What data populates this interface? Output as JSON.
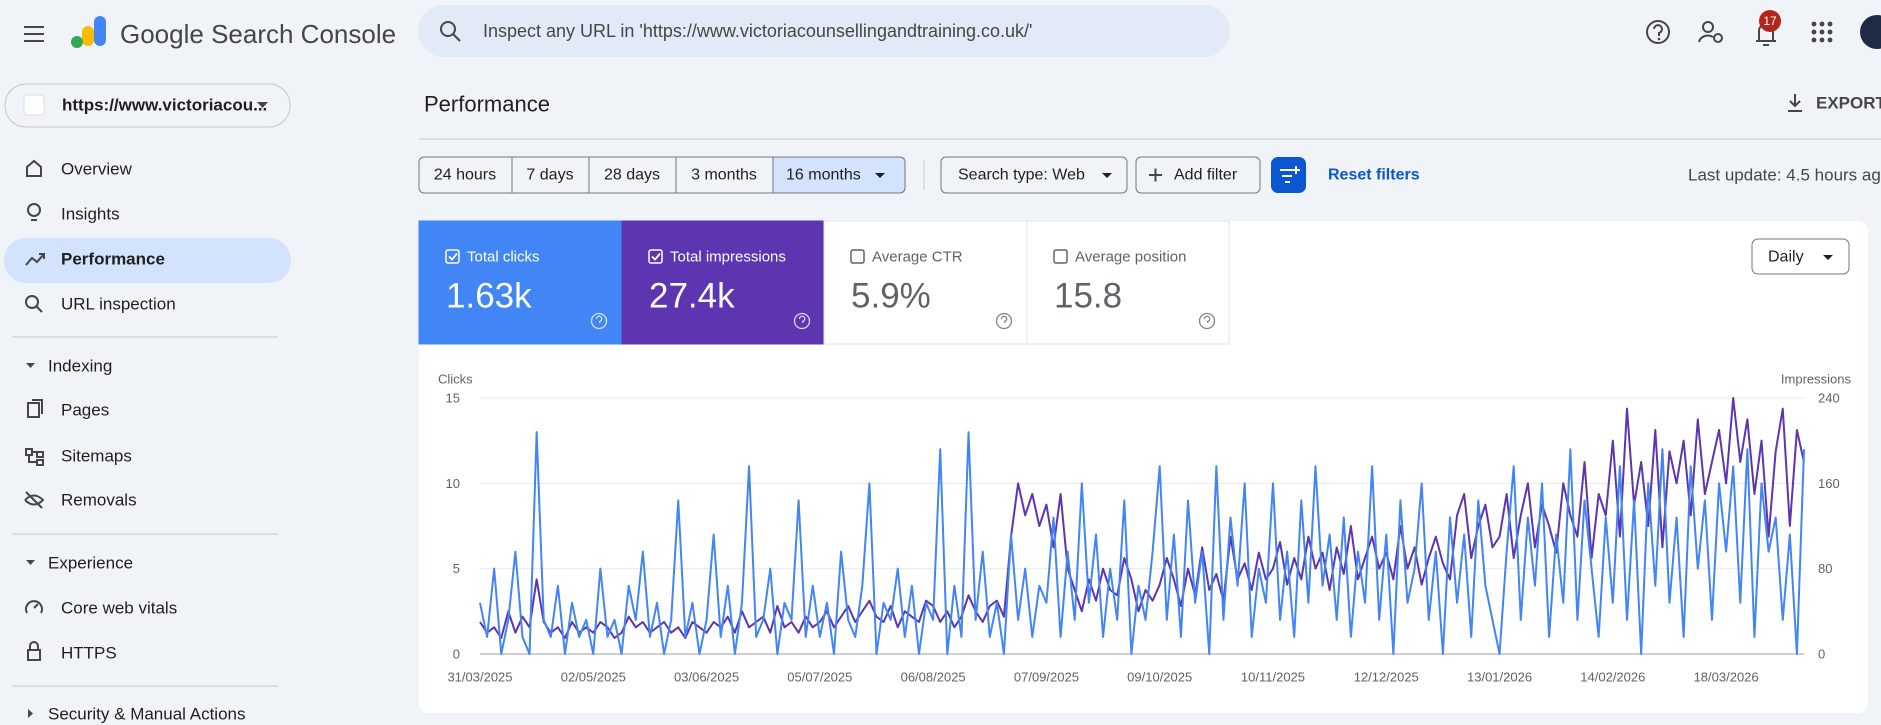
{
  "header": {
    "product": "Google Search Console",
    "search_placeholder": "Inspect any URL in 'https://www.victoriacounsellingandtraining.co.uk/'",
    "notifications": "17"
  },
  "property": "https://www.victoriacou...",
  "nav": [
    "Overview",
    "Insights",
    "Performance",
    "URL inspection"
  ],
  "indexing": {
    "title": "Indexing",
    "items": [
      "Pages",
      "Sitemaps",
      "Removals"
    ]
  },
  "experience": {
    "title": "Experience",
    "items": [
      "Core web vitals",
      "HTTPS"
    ]
  },
  "security": {
    "title": "Security & Manual Actions"
  },
  "page": {
    "title": "Performance",
    "export": "EXPORT",
    "ranges": [
      "24 hours",
      "7 days",
      "28 days",
      "3 months",
      "16 months"
    ],
    "search_type": "Search type: Web",
    "add_filter": "Add filter",
    "reset": "Reset filters",
    "last_update": "Last update: 4.5 hours ag",
    "granularity": "Daily"
  },
  "metrics": [
    {
      "label": "Total clicks",
      "value": "1.63k"
    },
    {
      "label": "Total impressions",
      "value": "27.4k"
    },
    {
      "label": "Average CTR",
      "value": "5.9%"
    },
    {
      "label": "Average position",
      "value": "15.8"
    }
  ],
  "chart_data": {
    "type": "line",
    "categories": [
      "31/03/2025",
      null,
      null,
      null,
      null,
      null,
      null,
      null,
      null,
      null,
      null,
      null,
      null,
      null,
      null,
      null,
      "02/05/2025",
      null,
      null,
      null,
      null,
      null,
      null,
      null,
      null,
      null,
      null,
      null,
      null,
      null,
      null,
      null,
      "03/06/2025",
      null,
      null,
      null,
      null,
      null,
      null,
      null,
      null,
      null,
      null,
      null,
      null,
      null,
      null,
      null,
      "05/07/2025",
      null,
      null,
      null,
      null,
      null,
      null,
      null,
      null,
      null,
      null,
      null,
      null,
      null,
      null,
      null,
      "06/08/2025",
      null,
      null,
      null,
      null,
      null,
      null,
      null,
      null,
      null,
      null,
      null,
      null,
      null,
      null,
      null,
      "07/09/2025",
      null,
      null,
      null,
      null,
      null,
      null,
      null,
      null,
      null,
      null,
      null,
      null,
      null,
      null,
      null,
      "09/10/2025",
      null,
      null,
      null,
      null,
      null,
      null,
      null,
      null,
      null,
      null,
      null,
      null,
      null,
      null,
      null,
      "10/11/2025",
      null,
      null,
      null,
      null,
      null,
      null,
      null,
      null,
      null,
      null,
      null,
      null,
      null,
      null,
      null,
      "12/12/2025",
      null,
      null,
      null,
      null,
      null,
      null,
      null,
      null,
      null,
      null,
      null,
      null,
      null,
      null,
      null,
      "13/01/2026",
      null,
      null,
      null,
      null,
      null,
      null,
      null,
      null,
      null,
      null,
      null,
      null,
      null,
      null,
      null,
      "14/02/2026",
      null,
      null,
      null,
      null,
      null,
      null,
      null,
      null,
      null,
      null,
      null,
      null,
      null,
      null,
      null,
      "18/03/2026",
      null,
      null,
      null,
      null,
      null,
      null,
      null,
      null,
      null,
      null,
      null
    ],
    "series": [
      {
        "name": "Clicks",
        "color": "#4285f4",
        "values": [
          3,
          1,
          5,
          0,
          2,
          6,
          1,
          0,
          13,
          2,
          1,
          4,
          0,
          3,
          1,
          2,
          0,
          5,
          1,
          2,
          0,
          4,
          2,
          6,
          1,
          3,
          0,
          2,
          9,
          1,
          3,
          0,
          2,
          7,
          1,
          4,
          0,
          3,
          11,
          1,
          2,
          5,
          0,
          3,
          2,
          9,
          1,
          4,
          1,
          3,
          0,
          6,
          2,
          1,
          4,
          10,
          0,
          3,
          2,
          5,
          1,
          4,
          0,
          3,
          2,
          12,
          0,
          4,
          1,
          13,
          2,
          6,
          1,
          3,
          0,
          7,
          2,
          5,
          1,
          4,
          3,
          8,
          1,
          6,
          2,
          10,
          3,
          7,
          1,
          5,
          2,
          9,
          0,
          4,
          2,
          6,
          11,
          2,
          7,
          1,
          9,
          3,
          6,
          0,
          11,
          2,
          8,
          4,
          10,
          1,
          5,
          3,
          10,
          2,
          6,
          1,
          9,
          3,
          11,
          4,
          7,
          2,
          8,
          1,
          6,
          3,
          11,
          2,
          7,
          0,
          9,
          3,
          5,
          10,
          2,
          6,
          0,
          8,
          3,
          7,
          1,
          9,
          4,
          2,
          0,
          6,
          11,
          2,
          8,
          4,
          10,
          1,
          7,
          3,
          12,
          2,
          9,
          5,
          1,
          8,
          3,
          11,
          2,
          9,
          0,
          10,
          4,
          12,
          3,
          8,
          1,
          11,
          5,
          9,
          2,
          10,
          6,
          11,
          3,
          12,
          1,
          10,
          6,
          8,
          2,
          7,
          0,
          12
        ]
      },
      {
        "name": "Impressions",
        "color": "#5e35b1",
        "axis": "y2",
        "values": [
          30,
          20,
          25,
          15,
          40,
          20,
          35,
          25,
          70,
          30,
          20,
          25,
          15,
          30,
          20,
          25,
          20,
          30,
          25,
          15,
          20,
          35,
          25,
          30,
          20,
          25,
          30,
          20,
          25,
          15,
          30,
          25,
          20,
          30,
          25,
          35,
          20,
          40,
          25,
          30,
          35,
          20,
          45,
          25,
          30,
          20,
          35,
          25,
          30,
          40,
          25,
          35,
          45,
          30,
          40,
          50,
          35,
          30,
          45,
          25,
          40,
          35,
          30,
          50,
          45,
          30,
          40,
          25,
          35,
          55,
          40,
          30,
          45,
          50,
          35,
          110,
          160,
          130,
          150,
          120,
          140,
          100,
          150,
          80,
          60,
          40,
          70,
          50,
          80,
          60,
          55,
          90,
          70,
          40,
          60,
          50,
          65,
          90,
          70,
          45,
          80,
          55,
          100,
          60,
          75,
          50,
          110,
          70,
          85,
          60,
          95,
          70,
          80,
          105,
          65,
          90,
          70,
          110,
          80,
          95,
          60,
          100,
          75,
          120,
          70,
          90,
          110,
          80,
          95,
          70,
          120,
          80,
          100,
          65,
          90,
          110,
          85,
          70,
          130,
          150,
          90,
          120,
          140,
          100,
          110,
          150,
          90,
          130,
          160,
          100,
          140,
          120,
          95,
          160,
          130,
          110,
          180,
          90,
          150,
          130,
          200,
          110,
          230,
          140,
          180,
          120,
          210,
          100,
          190,
          160,
          200,
          130,
          220,
          150,
          180,
          210,
          160,
          240,
          180,
          220,
          150,
          200,
          110,
          190,
          230,
          120,
          210,
          180
        ]
      }
    ],
    "ylim": [
      0,
      15
    ],
    "yticks": [
      0,
      5,
      10,
      15
    ],
    "y2lim": [
      0,
      240
    ],
    "y2ticks": [
      0,
      80,
      160,
      240
    ],
    "grid": true
  }
}
